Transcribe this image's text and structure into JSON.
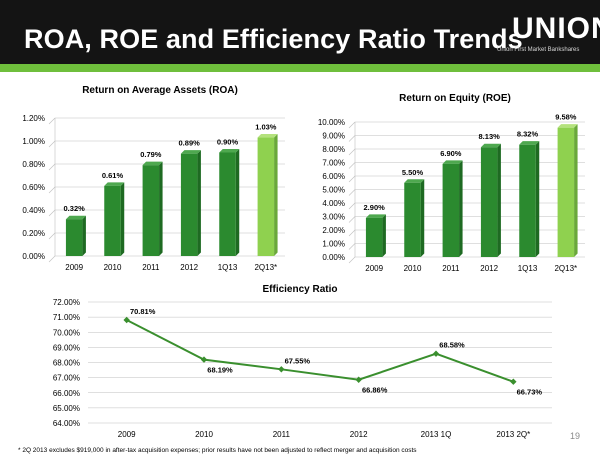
{
  "header": {
    "title": "ROA, ROE and Efficiency Ratio Trends",
    "logo_text": "UNION",
    "logo_tagline": "Union First Market Bankshares"
  },
  "footnote": "* 2Q 2013 excludes $919,000 in after-tax acquisition expenses; prior results have not been adjusted to reflect merger and acquisition costs",
  "page_number": "19",
  "colors": {
    "header_bg": "#141414",
    "accent_green": "#6fbf3c",
    "bar_dark_green": "#2b8a2f",
    "bar_light_green": "#8fd14f",
    "line_green": "#3a8f2e"
  },
  "chart_data": [
    {
      "type": "bar",
      "title": "Return on Average Assets (ROA)",
      "categories": [
        "2009",
        "2010",
        "2011",
        "2012",
        "1Q13",
        "2Q13*"
      ],
      "values": [
        0.32,
        0.61,
        0.79,
        0.89,
        0.9,
        1.03
      ],
      "data_labels": [
        "0.32%",
        "0.61%",
        "0.79%",
        "0.89%",
        "0.90%",
        "1.03%"
      ],
      "highlight_last": true,
      "ylim": [
        0,
        1.2
      ],
      "yticks": [
        "0.00%",
        "0.20%",
        "0.40%",
        "0.60%",
        "0.80%",
        "1.00%",
        "1.20%"
      ],
      "grid": true
    },
    {
      "type": "bar",
      "title": "Return on Equity (ROE)",
      "categories": [
        "2009",
        "2010",
        "2011",
        "2012",
        "1Q13",
        "2Q13*"
      ],
      "values": [
        2.9,
        5.5,
        6.9,
        8.13,
        8.32,
        9.58
      ],
      "data_labels": [
        "2.90%",
        "5.50%",
        "6.90%",
        "8.13%",
        "8.32%",
        "9.58%"
      ],
      "highlight_last": true,
      "ylim": [
        0,
        10
      ],
      "yticks": [
        "0.00%",
        "1.00%",
        "2.00%",
        "3.00%",
        "4.00%",
        "5.00%",
        "6.00%",
        "7.00%",
        "8.00%",
        "9.00%",
        "10.00%"
      ],
      "grid": true
    },
    {
      "type": "line",
      "title": "Efficiency Ratio",
      "categories": [
        "2009",
        "2010",
        "2011",
        "2012",
        "2013 1Q",
        "2013 2Q*"
      ],
      "values": [
        70.81,
        68.19,
        67.55,
        66.86,
        68.58,
        66.73
      ],
      "data_labels": [
        "70.81%",
        "68.19%",
        "67.55%",
        "66.86%",
        "68.58%",
        "66.73%"
      ],
      "label_positions": [
        "above",
        "below",
        "above",
        "below",
        "above",
        "below"
      ],
      "ylim": [
        64,
        72
      ],
      "yticks": [
        "64.00%",
        "65.00%",
        "66.00%",
        "67.00%",
        "68.00%",
        "69.00%",
        "70.00%",
        "71.00%",
        "72.00%"
      ],
      "grid": true
    }
  ]
}
